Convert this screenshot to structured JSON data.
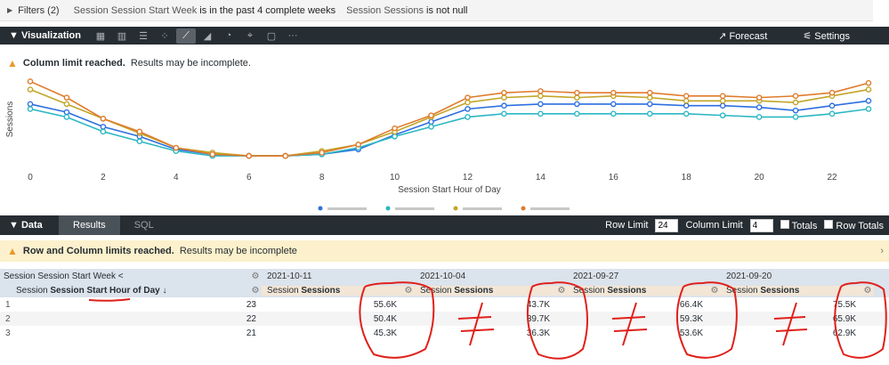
{
  "filters": {
    "title": "Filters (2)",
    "cond1_field": "Session Session Start Week",
    "cond1_op": "is in the past 4 complete weeks",
    "cond2_field": "Session Sessions",
    "cond2_op": "is not null"
  },
  "visualization": {
    "label": "Visualization",
    "icons": [
      "table-icon",
      "column-chart-icon",
      "bar-chart-icon",
      "scatter-icon",
      "line-chart-icon",
      "area-chart-icon",
      "pie-chart-icon",
      "map-icon",
      "single-value-icon",
      "more-icon"
    ],
    "forecast_label": "Forecast",
    "settings_label": "Settings"
  },
  "warning_viz": {
    "bold": "Column limit reached.",
    "rest": "Results may be incomplete."
  },
  "chart_data": {
    "type": "line",
    "ylabel": "Sessions",
    "xlabel": "Session Start Hour of Day",
    "xticks": [
      "0",
      "2",
      "4",
      "6",
      "8",
      "10",
      "12",
      "14",
      "16",
      "18",
      "20",
      "22"
    ],
    "x": [
      0,
      1,
      2,
      3,
      4,
      5,
      6,
      7,
      8,
      9,
      10,
      11,
      12,
      13,
      14,
      15,
      16,
      17,
      18,
      19,
      20,
      21,
      22,
      23
    ],
    "legend_placement": "bottom",
    "grid": false,
    "series": [
      {
        "color": "#2d6fe0",
        "values": [
          48,
          43,
          34,
          28,
          20,
          17,
          16,
          16,
          17,
          20,
          29,
          37,
          45,
          47,
          48,
          48,
          48,
          48,
          47,
          47,
          46,
          44,
          47,
          50
        ]
      },
      {
        "color": "#2bb7c4",
        "values": [
          45,
          40,
          31,
          25,
          19,
          16,
          16,
          16,
          17,
          21,
          28,
          34,
          40,
          42,
          42,
          42,
          42,
          42,
          42,
          41,
          40,
          40,
          42,
          45
        ]
      },
      {
        "color": "#c2a528",
        "values": [
          57,
          48,
          39,
          30,
          21,
          18,
          16,
          16,
          19,
          23,
          31,
          40,
          49,
          52,
          53,
          52,
          53,
          52,
          50,
          50,
          50,
          49,
          53,
          57
        ]
      },
      {
        "color": "#e07b2c",
        "values": [
          62,
          52,
          39,
          31,
          21,
          17,
          16,
          16,
          18,
          23,
          33,
          41,
          52,
          55,
          56,
          55,
          55,
          55,
          53,
          53,
          52,
          53,
          55,
          61
        ]
      }
    ]
  },
  "data_bar": {
    "label": "Data",
    "tabs": [
      "Results",
      "SQL"
    ],
    "row_limit_label": "Row Limit",
    "row_limit_value": "24",
    "column_limit_label": "Column Limit",
    "column_limit_value": "4",
    "totals_label": "Totals",
    "row_totals_label": "Row Totals"
  },
  "warning_data": {
    "bold": "Row and Column limits reached.",
    "rest": "Results may be incomplete"
  },
  "table": {
    "pivot_header": "Session Session Start Week",
    "pivot_caret": "<",
    "pivots": [
      "2021-10-11",
      "2021-10-04",
      "2021-09-27",
      "2021-09-20"
    ],
    "dim_prefix": "Session",
    "dim_name": "Session Start Hour of Day",
    "sort_arrow": "↓",
    "measure_prefix": "Session",
    "measure_name": "Sessions",
    "rows": [
      {
        "idx": "1",
        "hour": "23",
        "vals": [
          "55.6K",
          "43.7K",
          "66.4K",
          "75.5K"
        ]
      },
      {
        "idx": "2",
        "hour": "22",
        "vals": [
          "50.4K",
          "39.7K",
          "59.3K",
          "65.9K"
        ]
      },
      {
        "idx": "3",
        "hour": "21",
        "vals": [
          "45.3K",
          "36.3K",
          "53.6K",
          "62.9K"
        ]
      }
    ]
  }
}
